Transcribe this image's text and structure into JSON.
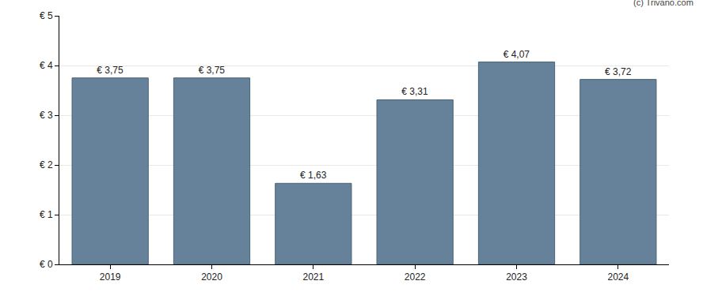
{
  "chart_data": {
    "type": "bar",
    "categories": [
      "2019",
      "2020",
      "2021",
      "2022",
      "2023",
      "2024"
    ],
    "values": [
      3.75,
      3.75,
      1.63,
      3.31,
      4.07,
      3.72
    ],
    "value_labels": [
      "€ 3,75",
      "€ 3,75",
      "€ 1,63",
      "€ 3,31",
      "€ 4,07",
      "€ 3,72"
    ],
    "data_labels": true,
    "color": "#65829a",
    "ylim": [
      0,
      5
    ],
    "yticks": [
      {
        "value": 0,
        "label": "€ 0"
      },
      {
        "value": 1,
        "label": "€ 1"
      },
      {
        "value": 2,
        "label": "€ 2"
      },
      {
        "value": 3,
        "label": "€ 3"
      },
      {
        "value": 4,
        "label": "€ 4"
      },
      {
        "value": 5,
        "label": "€ 5"
      }
    ],
    "grid": true,
    "annotations": [
      "(c) Trivano.com"
    ]
  }
}
